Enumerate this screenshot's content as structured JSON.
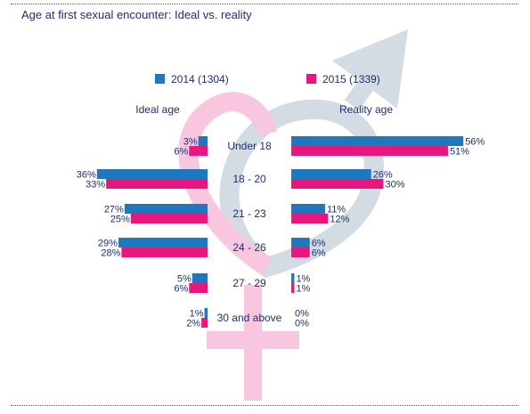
{
  "title": "Age at first sexual encounter: Ideal vs. reality",
  "colors": {
    "series_2014": "#1f78bd",
    "series_2015": "#e8177d",
    "female_symbol": "#f8c6de",
    "male_symbol": "#d3dbe3",
    "title_text": "#1d2f6f",
    "label_text": "#1d2f6f",
    "rule": "#4a5aa8"
  },
  "icons": [
    "female-symbol-icon",
    "male-symbol-icon"
  ],
  "chart_data": {
    "type": "bar",
    "title": "Age at first sexual encounter: Ideal vs. reality",
    "panels": [
      "Ideal age",
      "Reality age"
    ],
    "categories": [
      "Under 18",
      "18 - 20",
      "21 - 23",
      "24 - 26",
      "27 - 29",
      "30 and above"
    ],
    "series": [
      {
        "name": "2014 (1304)",
        "ideal": [
          3,
          36,
          27,
          29,
          5,
          1
        ],
        "reality": [
          56,
          26,
          11,
          6,
          1,
          0
        ]
      },
      {
        "name": "2015 (1339)",
        "ideal": [
          6,
          33,
          25,
          28,
          6,
          2
        ],
        "reality": [
          51,
          30,
          12,
          6,
          1,
          0
        ]
      }
    ],
    "value_suffix": "%",
    "legend_position": "top",
    "grid": false
  }
}
